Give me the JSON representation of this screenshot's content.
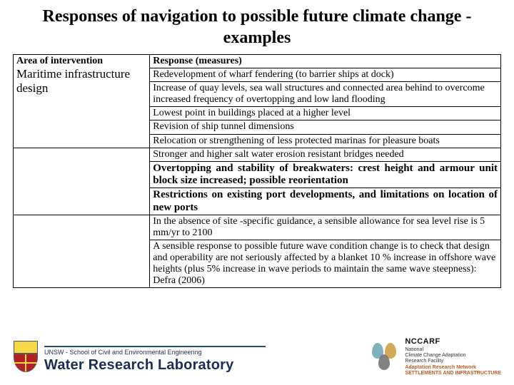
{
  "title": "Responses of navigation to possible future climate change - examples",
  "table": {
    "header_left": "Area of intervention",
    "area_label": "Maritime infrastructure design",
    "header_right": "Response (measures)",
    "rows": [
      "Redevelopment of wharf fendering (to barrier ships at dock)",
      "Increase of quay levels, sea wall structures and connected area behind to overcome increased frequency of overtopping and low land flooding",
      "Lowest point in buildings placed at a higher level",
      "Revision of ship tunnel dimensions",
      "Relocation or strengthening of less protected marinas for pleasure boats"
    ],
    "rows2": [
      "Stronger and higher salt water erosion resistant bridges needed"
    ],
    "bold_rows": [
      "Overtopping and stability of breakwaters: crest height and armour unit block size increased; possible reorientation",
      "Restrictions on existing port developments, and limitations on location of new ports"
    ],
    "rows3": [
      "In the absence of site -specific guidance, a sensible allowance for sea level rise is 5 mm/yr to 2100",
      "A sensible response to possible future wave condition change is to check that design and operability are not seriously affected by a blanket 10 % increase in offshore wave heights (plus 5% increase in wave periods to maintain the same wave steepness): Defra (2006)"
    ]
  },
  "footer": {
    "unsw_sub": "UNSW - School of Civil and Environmental Engineering",
    "wrl": "Water Research Laboratory",
    "nccarf_brand": "NCCARF",
    "nccarf_line1": "National",
    "nccarf_line2": "Climate Change Adaptation",
    "nccarf_line3": "Research Facility",
    "nccarf_net1": "Adaptation Research Network",
    "nccarf_net2": "SETTLEMENTS AND INFRASTRUCTURE"
  }
}
